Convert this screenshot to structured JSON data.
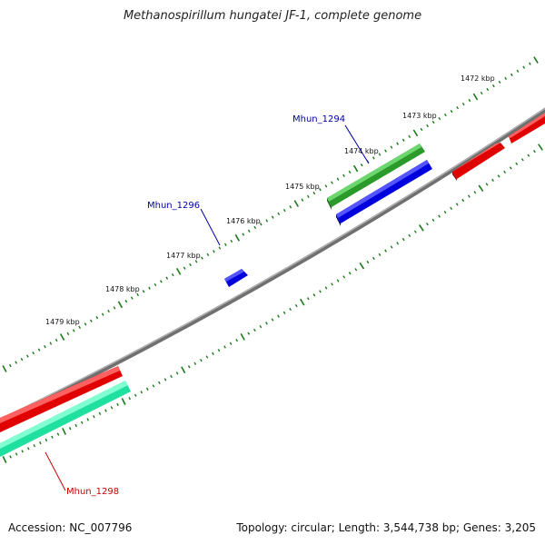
{
  "title": "Methanospirillum hungatei JF-1, complete genome",
  "footer": {
    "accession": "Accession: NC_007796",
    "stats": "Topology: circular; Length: 3,544,738 bp; Genes: 3,205"
  },
  "kbp_labels": [
    "1472 kbp",
    "1473 kbp",
    "1474 kbp",
    "1475 kbp",
    "1476 kbp",
    "1477 kbp",
    "1478 kbp",
    "1479 kbp"
  ],
  "gene_labels": {
    "mhun_1294": "Mhun_1294",
    "mhun_1296": "Mhun_1296",
    "mhun_1298": "Mhun_1298"
  },
  "colors": {
    "backbone": "#808080",
    "tick": "#1a7a1a",
    "red": "#e00000",
    "green": "#2a9a2a",
    "blue": "#0000dd",
    "teal": "#20e0a0",
    "label_blue": "#0000aa",
    "label_red": "#cc0000"
  }
}
